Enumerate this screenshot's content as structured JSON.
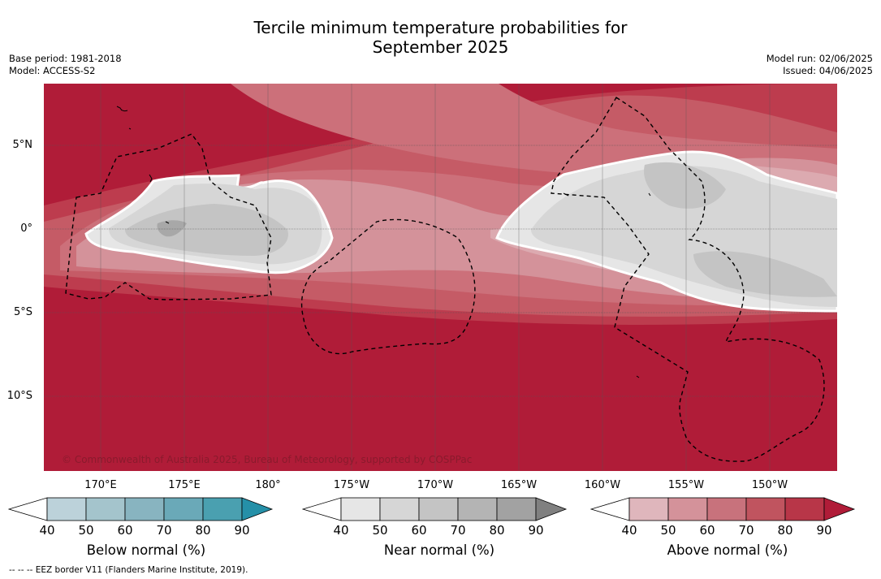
{
  "title_line1": "Tercile minimum temperature probabilities for",
  "title_line2": "September 2025",
  "base_period": "Base period: 1981-2018",
  "model": "Model: ACCESS-S2",
  "model_run": "Model run: 02/06/2025",
  "issued": "Issued: 04/06/2025",
  "copyright": "© Commonwealth of Australia 2025, Bureau of Meteorology, supported by COSPPac",
  "footnote": "--  --  -- EEZ border V11 (Flanders Marine Institute, 2019).",
  "lat_labels": [
    "5°N",
    "0°",
    "5°S",
    "10°S"
  ],
  "lon_labels": [
    "170°E",
    "175°E",
    "180°",
    "175°W",
    "170°W",
    "165°W",
    "160°W",
    "155°W",
    "150°W"
  ],
  "colorbars": [
    {
      "title": "Below normal (%)",
      "ticks": [
        "40",
        "50",
        "60",
        "70",
        "80",
        "90"
      ],
      "colors": [
        "#ffffff",
        "#bcd2da",
        "#a4c4cc",
        "#88b4c0",
        "#6aa9b8",
        "#4aa0b0",
        "#2590a8"
      ]
    },
    {
      "title": "Near normal (%)",
      "ticks": [
        "40",
        "50",
        "60",
        "70",
        "80",
        "90"
      ],
      "colors": [
        "#ffffff",
        "#e6e6e6",
        "#d6d6d6",
        "#c4c4c4",
        "#b4b4b4",
        "#a2a2a2",
        "#808080"
      ]
    },
    {
      "title": "Above normal (%)",
      "ticks": [
        "40",
        "50",
        "60",
        "70",
        "80",
        "90"
      ],
      "colors": [
        "#ffffff",
        "#dfb6bc",
        "#d4929a",
        "#c8727c",
        "#c0545f",
        "#b83648",
        "#b01c38"
      ]
    }
  ],
  "map_colors": {
    "above_90": "#b01c38",
    "above_80": "#bd3c4e",
    "above_70": "#c55b66",
    "above_60": "#cc707a",
    "above_50": "#d4929a",
    "above_40": "#dcaab0",
    "near_50": "#e6e6e6",
    "near_60": "#d6d6d6",
    "near_70": "#c4c4c4",
    "near_80": "#a8a8a8"
  }
}
